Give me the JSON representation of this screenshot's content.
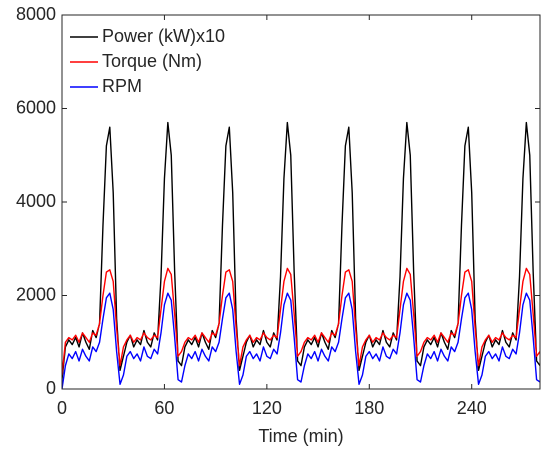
{
  "chart_data": {
    "type": "line",
    "xlabel": "Time (min)",
    "xlim": [
      0,
      280
    ],
    "xticks": [
      0,
      60,
      120,
      180,
      240
    ],
    "ylim": [
      0,
      8000
    ],
    "yticks": [
      0,
      2000,
      4000,
      6000,
      8000
    ],
    "legend": "upper left",
    "x": [
      0,
      2,
      4,
      6,
      8,
      10,
      12,
      14,
      16,
      18,
      20,
      22,
      24,
      26,
      28,
      30,
      32,
      34,
      36,
      38,
      40,
      42,
      44,
      46,
      48,
      50,
      52,
      54,
      56,
      58,
      60,
      62,
      64,
      66,
      68,
      70,
      72,
      74,
      76,
      78,
      80,
      82,
      84,
      86,
      88,
      90,
      92,
      94,
      96,
      98,
      100,
      102,
      104,
      106,
      108,
      110,
      112,
      114,
      116,
      118,
      120,
      122,
      124,
      126,
      128,
      130,
      132,
      134,
      136,
      138,
      140,
      142,
      144,
      146,
      148,
      150,
      152,
      154,
      156,
      158,
      160,
      162,
      164,
      166,
      168,
      170,
      172,
      174,
      176,
      178,
      180,
      182,
      184,
      186,
      188,
      190,
      192,
      194,
      196,
      198,
      200,
      202,
      204,
      206,
      208,
      210,
      212,
      214,
      216,
      218,
      220,
      222,
      224,
      226,
      228,
      230,
      232,
      234,
      236,
      238,
      240,
      242,
      244,
      246,
      248,
      250,
      252,
      254,
      256,
      258,
      260,
      262,
      264,
      266,
      268,
      270,
      272,
      274,
      276,
      278,
      280
    ],
    "series": [
      {
        "name": "Power (kW)x10",
        "color": "#000000",
        "values": [
          200,
          900,
          1050,
          950,
          1100,
          900,
          1200,
          1000,
          850,
          1250,
          1100,
          1400,
          3500,
          5200,
          5600,
          4200,
          1500,
          400,
          700,
          1000,
          1150,
          900,
          1050,
          950,
          1250,
          1000,
          900,
          1200,
          1050,
          2400,
          4500,
          5700,
          5000,
          2500,
          600,
          500,
          900,
          1050,
          950,
          1100,
          900,
          1200,
          1000,
          850,
          1250,
          1100,
          1400,
          3500,
          5200,
          5600,
          4200,
          1500,
          400,
          700,
          1000,
          1150,
          900,
          1050,
          950,
          1250,
          1000,
          900,
          1200,
          1050,
          2400,
          4500,
          5700,
          5000,
          2500,
          600,
          500,
          900,
          1050,
          950,
          1100,
          900,
          1200,
          1000,
          850,
          1250,
          1100,
          1400,
          3500,
          5200,
          5600,
          4200,
          1500,
          400,
          700,
          1000,
          1150,
          900,
          1050,
          950,
          1250,
          1000,
          900,
          1200,
          1050,
          2400,
          4500,
          5700,
          5000,
          2500,
          600,
          500,
          900,
          1050,
          950,
          1100,
          900,
          1200,
          1000,
          850,
          1250,
          1100,
          1400,
          3500,
          5200,
          5600,
          4200,
          1500,
          400,
          700,
          1000,
          1150,
          900,
          1050,
          950,
          1250,
          1000,
          900,
          1200,
          1050,
          2400,
          4500,
          5700,
          5000,
          2500,
          600,
          500
        ]
      },
      {
        "name": "Torque (Nm)",
        "color": "#ff0000",
        "values": [
          300,
          1000,
          1100,
          1050,
          1150,
          1000,
          1200,
          1100,
          1000,
          1200,
          1150,
          1400,
          2000,
          2500,
          2550,
          2300,
          1300,
          500,
          900,
          1050,
          1150,
          1000,
          1100,
          1050,
          1200,
          1100,
          1050,
          1150,
          1100,
          1700,
          2300,
          2580,
          2450,
          1600,
          700,
          800,
          1000,
          1100,
          1050,
          1150,
          1000,
          1200,
          1100,
          1000,
          1200,
          1150,
          1400,
          2000,
          2500,
          2550,
          2300,
          1300,
          500,
          900,
          1050,
          1150,
          1000,
          1100,
          1050,
          1200,
          1100,
          1050,
          1150,
          1100,
          1700,
          2300,
          2580,
          2450,
          1600,
          700,
          800,
          1000,
          1100,
          1050,
          1150,
          1000,
          1200,
          1100,
          1000,
          1200,
          1150,
          1400,
          2000,
          2500,
          2550,
          2300,
          1300,
          500,
          900,
          1050,
          1150,
          1000,
          1100,
          1050,
          1200,
          1100,
          1050,
          1150,
          1100,
          1700,
          2300,
          2580,
          2450,
          1600,
          700,
          800,
          1000,
          1100,
          1050,
          1150,
          1000,
          1200,
          1100,
          1000,
          1200,
          1150,
          1400,
          2000,
          2500,
          2550,
          2300,
          1300,
          500,
          900,
          1050,
          1150,
          1000,
          1100,
          1050,
          1200,
          1100,
          1050,
          1150,
          1100,
          1700,
          2300,
          2580,
          2450,
          1600,
          700,
          800
        ]
      },
      {
        "name": "RPM",
        "color": "#0000ff",
        "values": [
          0,
          500,
          750,
          650,
          800,
          600,
          850,
          700,
          600,
          900,
          800,
          1000,
          1500,
          1950,
          2050,
          1700,
          800,
          100,
          300,
          700,
          800,
          650,
          750,
          600,
          900,
          700,
          650,
          850,
          750,
          1200,
          1800,
          2050,
          1900,
          1100,
          200,
          150,
          500,
          750,
          650,
          800,
          600,
          850,
          700,
          600,
          900,
          800,
          1000,
          1500,
          1950,
          2050,
          1700,
          800,
          100,
          300,
          700,
          800,
          650,
          750,
          600,
          900,
          700,
          650,
          850,
          750,
          1200,
          1800,
          2050,
          1900,
          1100,
          200,
          150,
          500,
          750,
          650,
          800,
          600,
          850,
          700,
          600,
          900,
          800,
          1000,
          1500,
          1950,
          2050,
          1700,
          800,
          100,
          300,
          700,
          800,
          650,
          750,
          600,
          900,
          700,
          650,
          850,
          750,
          1200,
          1800,
          2050,
          1900,
          1100,
          200,
          150,
          500,
          750,
          650,
          800,
          600,
          850,
          700,
          600,
          900,
          800,
          1000,
          1500,
          1950,
          2050,
          1700,
          800,
          100,
          300,
          700,
          800,
          650,
          750,
          600,
          900,
          700,
          650,
          850,
          750,
          1200,
          1800,
          2050,
          1900,
          1100,
          200,
          150
        ]
      }
    ]
  }
}
